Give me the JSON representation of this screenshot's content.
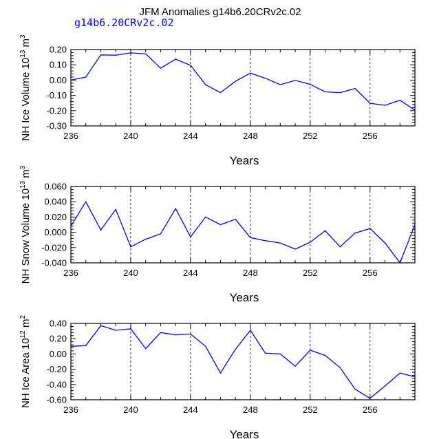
{
  "title": "JFM Anomalies g14b6.20CRv2c.02",
  "subtitle": "g14b6.20CRv2c.02",
  "line_color": "#0000ff",
  "chart_data": [
    {
      "type": "line",
      "name": "ice-volume",
      "ylabel": "NH Ice Volume 10",
      "ylabel_sup": "13",
      "ylabel_unit": " m",
      "ylabel_unit_sup": "3",
      "xlabel": "Years",
      "xlim": [
        236,
        259
      ],
      "ylim": [
        -0.3,
        0.2
      ],
      "x_ticks": [
        236,
        240,
        244,
        248,
        252,
        256
      ],
      "x_tick_labels": [
        "236",
        "240",
        "244",
        "248",
        "252",
        "256"
      ],
      "y_ticks": [
        -0.3,
        -0.2,
        -0.1,
        0.0,
        0.1,
        0.2
      ],
      "y_tick_labels": [
        "-0.30",
        "-0.20",
        "-0.10",
        "0.00",
        "0.10",
        "0.20"
      ],
      "x": [
        236,
        237,
        238,
        239,
        240,
        241,
        242,
        243,
        244,
        245,
        246,
        247,
        248,
        249,
        250,
        251,
        252,
        253,
        254,
        255,
        256,
        257,
        258,
        259
      ],
      "values": [
        0.0,
        0.02,
        0.165,
        0.163,
        0.178,
        0.172,
        0.078,
        0.137,
        0.097,
        -0.03,
        -0.082,
        -0.008,
        0.046,
        0.012,
        -0.03,
        -0.002,
        -0.028,
        -0.077,
        -0.082,
        -0.055,
        -0.152,
        -0.165,
        -0.132,
        -0.197
      ]
    },
    {
      "type": "line",
      "name": "snow-volume",
      "ylabel": "NH Snow Volume 10",
      "ylabel_sup": "13",
      "ylabel_unit": " m",
      "ylabel_unit_sup": "3",
      "xlabel": "Years",
      "xlim": [
        236,
        259
      ],
      "ylim": [
        -0.04,
        0.06
      ],
      "x_ticks": [
        236,
        240,
        244,
        248,
        252,
        256
      ],
      "x_tick_labels": [
        "236",
        "240",
        "244",
        "248",
        "252",
        "256"
      ],
      "y_ticks": [
        -0.04,
        -0.02,
        0.0,
        0.02,
        0.04,
        0.06
      ],
      "y_tick_labels": [
        "-0.040",
        "-0.020",
        "0.000",
        "0.020",
        "0.040",
        "0.060"
      ],
      "x": [
        236,
        237,
        238,
        239,
        240,
        241,
        242,
        243,
        244,
        245,
        246,
        247,
        248,
        249,
        250,
        251,
        252,
        253,
        254,
        255,
        256,
        257,
        258,
        259
      ],
      "values": [
        0.008,
        0.04,
        0.003,
        0.03,
        -0.019,
        -0.009,
        -0.002,
        0.031,
        -0.006,
        0.02,
        0.01,
        0.017,
        -0.007,
        -0.011,
        -0.014,
        -0.022,
        -0.013,
        0.002,
        -0.019,
        -0.001,
        0.005,
        -0.014,
        -0.04,
        0.01
      ]
    },
    {
      "type": "line",
      "name": "ice-area",
      "ylabel": "NH Ice Area 10",
      "ylabel_sup": "12",
      "ylabel_unit": " m",
      "ylabel_unit_sup": "2",
      "xlabel": "Years",
      "xlim": [
        236,
        259
      ],
      "ylim": [
        -0.6,
        0.4
      ],
      "x_ticks": [
        236,
        240,
        244,
        248,
        252,
        256
      ],
      "x_tick_labels": [
        "236",
        "240",
        "244",
        "248",
        "252",
        "256"
      ],
      "y_ticks": [
        -0.6,
        -0.4,
        -0.2,
        0.0,
        0.2,
        0.4
      ],
      "y_tick_labels": [
        "-0.60",
        "-0.40",
        "-0.20",
        "0.00",
        "0.20",
        "0.40"
      ],
      "x": [
        236,
        237,
        238,
        239,
        240,
        241,
        242,
        243,
        244,
        245,
        246,
        247,
        248,
        249,
        250,
        251,
        252,
        253,
        254,
        255,
        256,
        257,
        258,
        259
      ],
      "values": [
        0.1,
        0.11,
        0.37,
        0.31,
        0.33,
        0.07,
        0.28,
        0.25,
        0.26,
        0.1,
        -0.25,
        0.06,
        0.31,
        0.01,
        0.0,
        -0.16,
        0.05,
        -0.02,
        -0.18,
        -0.46,
        -0.58,
        -0.42,
        -0.25,
        -0.3
      ]
    }
  ]
}
